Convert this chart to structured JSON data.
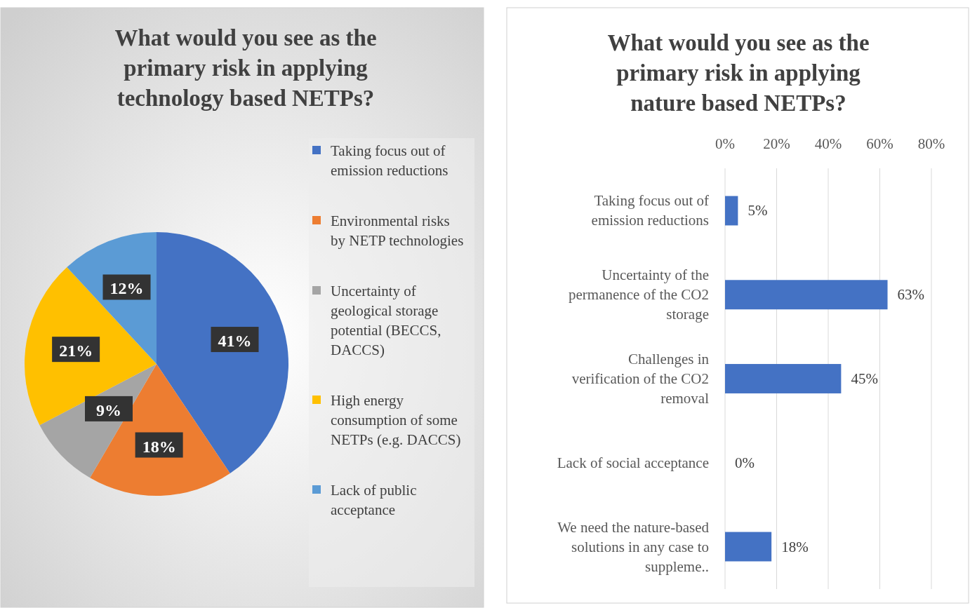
{
  "chart_data": [
    {
      "type": "pie",
      "title": "What would you see as the primary risk in applying technology based NETPs?",
      "categories": [
        "Taking focus out of emission reductions",
        "Environmental risks by NETP technologies",
        "Uncertainty of geological storage potential (BECCS, DACCS)",
        "High energy consumption of some NETPs (e.g. DACCS)",
        "Lack of public acceptance"
      ],
      "values": [
        41,
        18,
        9,
        21,
        12
      ],
      "colors": [
        "#4472c4",
        "#ed7d31",
        "#a5a5a5",
        "#ffc000",
        "#5b9bd5"
      ],
      "value_labels": [
        "41%",
        "18%",
        "9%",
        "21%",
        "12%"
      ],
      "legend": "right"
    },
    {
      "type": "bar",
      "orientation": "horizontal",
      "title": "What would you see as the primary risk in applying nature based NETPs?",
      "categories": [
        "Taking focus out of emission reductions",
        "Uncertainty of the permanence of the CO2 storage",
        "Challenges in verification of the CO2 removal",
        "Lack of social acceptance",
        "We need the nature-based solutions in any case to suppleme.."
      ],
      "values": [
        5,
        63,
        45,
        0,
        18
      ],
      "color": "#4472c4",
      "value_labels": [
        "5%",
        "63%",
        "45%",
        "0%",
        "18%"
      ],
      "xlim": [
        0,
        80
      ],
      "xticks": [
        {
          "value": 0,
          "label": "0%"
        },
        {
          "value": 20,
          "label": "20%"
        },
        {
          "value": 40,
          "label": "40%"
        },
        {
          "value": 60,
          "label": "60%"
        },
        {
          "value": 80,
          "label": "80%"
        }
      ],
      "grid": "x"
    }
  ]
}
